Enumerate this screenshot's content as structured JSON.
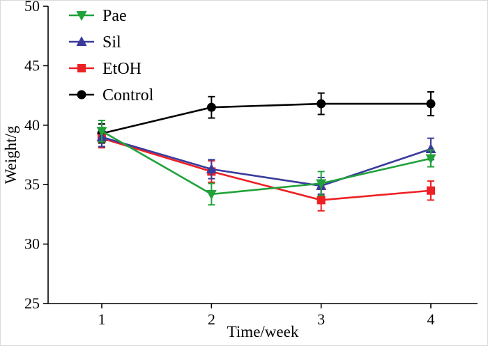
{
  "figure": {
    "background": "#ffffff"
  },
  "chart_data": {
    "type": "line",
    "title": "",
    "xlabel": "Time/week",
    "ylabel": "Weight/g",
    "x": [
      1,
      2,
      3,
      4
    ],
    "xticks": [
      "1",
      "2",
      "3",
      "4"
    ],
    "yticks": [
      25,
      30,
      35,
      40,
      45,
      50
    ],
    "xlim": [
      0.5,
      4.45
    ],
    "ylim": [
      25,
      50
    ],
    "grid": false,
    "legend_position": "top-left",
    "series": [
      {
        "name": "Pae",
        "color": "#1fa23a",
        "marker": "triangle-down",
        "values": [
          39.5,
          34.2,
          35.1,
          37.2
        ],
        "errors": [
          0.9,
          0.9,
          1.0,
          0.7
        ]
      },
      {
        "name": "Sil",
        "color": "#3a3a9c",
        "marker": "triangle-up",
        "values": [
          39.0,
          36.3,
          34.9,
          38.0
        ],
        "errors": [
          0.8,
          0.8,
          0.7,
          0.9
        ]
      },
      {
        "name": "EtOH",
        "color": "#ed2024",
        "marker": "square",
        "values": [
          38.9,
          36.1,
          33.7,
          34.5
        ],
        "errors": [
          0.8,
          0.9,
          0.9,
          0.8
        ]
      },
      {
        "name": "Control",
        "color": "#000000",
        "marker": "circle",
        "values": [
          39.3,
          41.5,
          41.8,
          41.8
        ],
        "errors": [
          0.8,
          0.9,
          0.9,
          1.0
        ]
      }
    ]
  }
}
